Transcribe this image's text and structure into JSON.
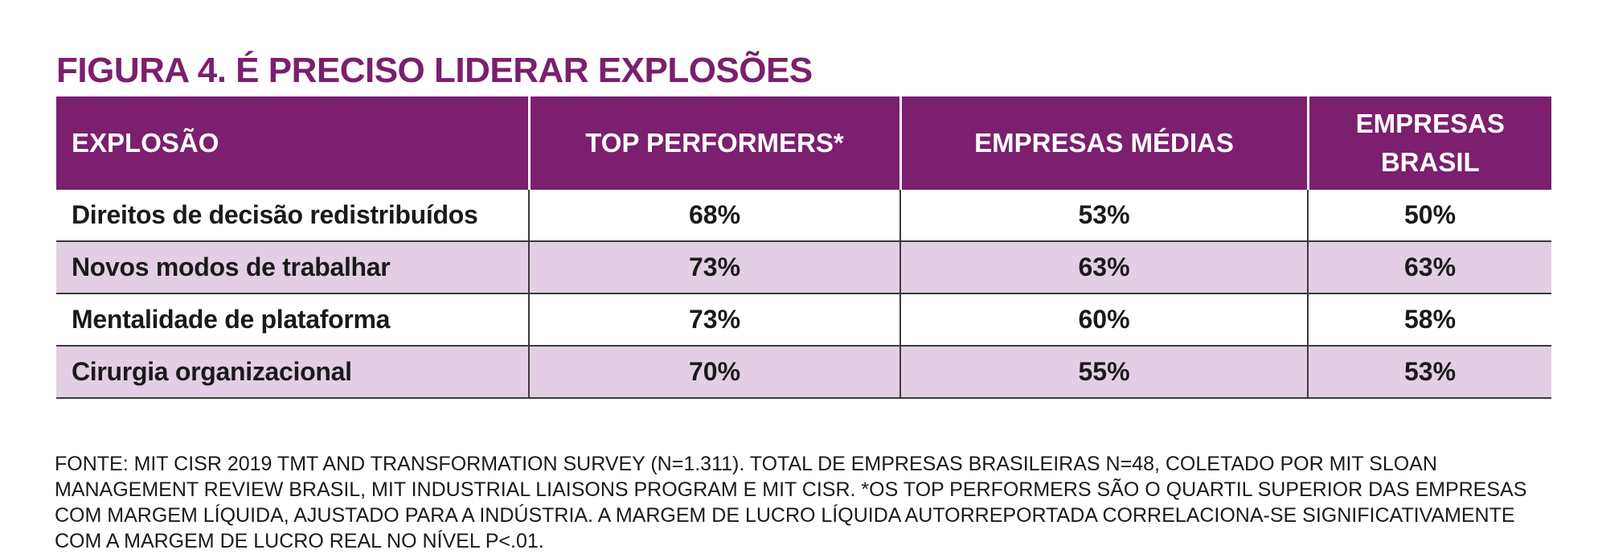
{
  "title": "FIGURA 4. É PRECISO LIDERAR EXPLOSÕES",
  "chart_data": {
    "type": "table",
    "title": "FIGURA 4. É PRECISO LIDERAR EXPLOSÕES",
    "columns": [
      "EXPLOSÃO",
      "TOP PERFORMERS*",
      "EMPRESAS MÉDIAS",
      "EMPRESAS BRASIL"
    ],
    "rows": [
      {
        "label": "Direitos de decisão redistribuídos",
        "values": [
          "68%",
          "53%",
          "50%"
        ]
      },
      {
        "label": "Novos modos de trabalhar",
        "values": [
          "73%",
          "63%",
          "63%"
        ]
      },
      {
        "label": "Mentalidade de plataforma",
        "values": [
          "73%",
          "60%",
          "58%"
        ]
      },
      {
        "label": "Cirurgia organizacional",
        "values": [
          "70%",
          "55%",
          "53%"
        ]
      }
    ]
  },
  "header_line_breaks": {
    "EMPRESAS BRASIL": [
      "EMPRESAS",
      "BRASIL"
    ]
  },
  "footnote": "FONTE: MIT CISR 2019 TMT AND TRANSFORMATION SURVEY (N=1.311). TOTAL DE EMPRESAS BRASILEIRAS N=48, COLETADO POR MIT SLOAN MANAGEMENT REVIEW BRASIL, MIT INDUSTRIAL LIAISONS PROGRAM E MIT CISR. *OS TOP PERFORMERS SÃO O QUARTIL SUPERIOR DAS EMPRESAS COM MARGEM LÍQUIDA, AJUSTADO PARA A INDÚSTRIA. A MARGEM DE LUCRO LÍQUIDA AUTORREPORTADA CORRELACIONA-SE SIGNIFICATIVAMENTE COM A MARGEM DE LUCRO REAL NO NÍVEL P<.01.",
  "colors": {
    "header_bg": "#7b1f6e",
    "shaded_row": "#e2cfe3",
    "title": "#7b1f6e"
  }
}
